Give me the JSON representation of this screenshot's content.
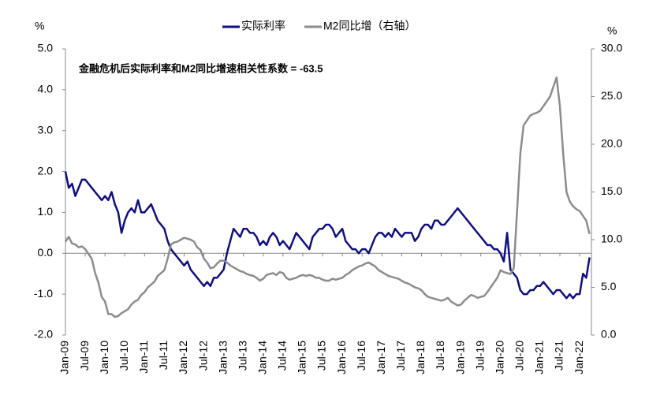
{
  "chart_data": {
    "type": "line",
    "annotation": "金融危机后实际利率和M2同比增速相关性系数 =  -63.5",
    "y_label": "%",
    "y2_label": "%",
    "legend": "top",
    "categories": [
      "Jan-09",
      null,
      null,
      null,
      null,
      null,
      "Jul-09",
      null,
      null,
      null,
      null,
      null,
      "Jan-10",
      null,
      null,
      null,
      null,
      null,
      "Jul-10",
      null,
      null,
      null,
      null,
      null,
      "Jan-11",
      null,
      null,
      null,
      null,
      null,
      "Jul-11",
      null,
      null,
      null,
      null,
      null,
      "Jan-12",
      null,
      null,
      null,
      null,
      null,
      "Jul-12",
      null,
      null,
      null,
      null,
      null,
      "Jan-13",
      null,
      null,
      null,
      null,
      null,
      "Jul-13",
      null,
      null,
      null,
      null,
      null,
      "Jan-14",
      null,
      null,
      null,
      null,
      null,
      "Jul-14",
      null,
      null,
      null,
      null,
      null,
      "Jan-15",
      null,
      null,
      null,
      null,
      null,
      "Jul-15",
      null,
      null,
      null,
      null,
      null,
      "Jan-16",
      null,
      null,
      null,
      null,
      null,
      "Jul-16",
      null,
      null,
      null,
      null,
      null,
      "Jan-17",
      null,
      null,
      null,
      null,
      null,
      "Jul-17",
      null,
      null,
      null,
      null,
      null,
      "Jan-18",
      null,
      null,
      null,
      null,
      null,
      "Jul-18",
      null,
      null,
      null,
      null,
      null,
      "Jan-19",
      null,
      null,
      null,
      null,
      null,
      "Jul-19",
      null,
      null,
      null,
      null,
      null,
      "Jan-20",
      null,
      null,
      null,
      null,
      null,
      "Jul-20",
      null,
      null,
      null,
      null,
      null,
      "Jan-21",
      null,
      null,
      null,
      null,
      null,
      "Jul-21",
      null,
      null,
      null,
      null,
      null,
      "Jan-22",
      null,
      null,
      null
    ],
    "series": [
      {
        "name": "实际利率",
        "color": "#0f0f80",
        "axis": "y",
        "values": [
          2.0,
          1.6,
          1.7,
          1.4,
          1.6,
          1.8,
          1.8,
          1.7,
          1.6,
          1.5,
          1.4,
          1.3,
          1.4,
          1.3,
          1.5,
          1.2,
          1.0,
          0.5,
          0.8,
          1.0,
          1.1,
          1.0,
          1.3,
          1.0,
          1.0,
          1.1,
          1.2,
          1.0,
          0.8,
          0.7,
          0.6,
          0.3,
          0.1,
          0.0,
          -0.1,
          -0.2,
          -0.3,
          -0.2,
          -0.4,
          -0.5,
          -0.6,
          -0.7,
          -0.8,
          -0.7,
          -0.8,
          -0.6,
          -0.6,
          -0.5,
          -0.4,
          0.0,
          0.3,
          0.6,
          0.5,
          0.4,
          0.6,
          0.6,
          0.5,
          0.5,
          0.4,
          0.2,
          0.3,
          0.2,
          0.4,
          0.5,
          0.4,
          0.2,
          0.3,
          0.2,
          0.1,
          0.3,
          0.5,
          0.4,
          0.3,
          0.2,
          0.1,
          0.4,
          0.5,
          0.6,
          0.6,
          0.7,
          0.7,
          0.6,
          0.4,
          0.5,
          0.6,
          0.3,
          0.2,
          0.1,
          0.1,
          0.0,
          0.1,
          0.1,
          0.0,
          0.2,
          0.4,
          0.5,
          0.5,
          0.4,
          0.5,
          0.4,
          0.6,
          0.5,
          0.4,
          0.5,
          0.5,
          0.5,
          0.3,
          0.4,
          0.6,
          0.7,
          0.7,
          0.6,
          0.8,
          0.8,
          0.7,
          0.7,
          0.8,
          0.9,
          1.0,
          1.1,
          1.0,
          0.9,
          0.8,
          0.7,
          0.6,
          0.5,
          0.4,
          0.3,
          0.2,
          0.2,
          0.1,
          0.1,
          0.0,
          -0.2,
          0.5,
          -0.4,
          -0.5,
          -0.6,
          -0.9,
          -1.0,
          -1.0,
          -0.9,
          -0.9,
          -0.8,
          -0.8,
          -0.7,
          -0.8,
          -0.9,
          -1.0,
          -0.9,
          -0.9,
          -1.0,
          -1.1,
          -1.0,
          -1.1,
          -1.0,
          -1.0,
          -0.5,
          -0.6,
          -0.1
        ]
      },
      {
        "name": "M2同比增（右轴）",
        "color": "#8c8c8c",
        "axis": "y2",
        "values": [
          9.8,
          10.3,
          9.6,
          9.5,
          9.2,
          9.3,
          9.0,
          8.5,
          8.0,
          6.5,
          5.5,
          4.0,
          3.5,
          2.2,
          2.2,
          1.9,
          2.0,
          2.3,
          2.5,
          2.7,
          3.2,
          3.5,
          3.7,
          4.2,
          4.5,
          5.0,
          5.3,
          5.6,
          6.2,
          6.5,
          6.8,
          8.0,
          9.5,
          9.7,
          9.8,
          10.0,
          10.2,
          10.1,
          10.0,
          9.8,
          9.2,
          8.9,
          8.0,
          7.6,
          7.0,
          7.1,
          7.5,
          7.8,
          7.8,
          7.6,
          7.3,
          7.1,
          6.9,
          6.7,
          6.6,
          6.4,
          6.3,
          6.2,
          6.0,
          5.7,
          5.9,
          6.3,
          6.4,
          6.5,
          6.3,
          6.6,
          6.5,
          6.0,
          5.8,
          5.9,
          6.0,
          6.2,
          6.3,
          6.2,
          6.3,
          6.2,
          6.0,
          6.0,
          5.8,
          5.7,
          5.7,
          5.9,
          5.8,
          5.9,
          6.0,
          6.3,
          6.5,
          6.8,
          7.0,
          7.2,
          7.3,
          7.5,
          7.6,
          7.4,
          7.2,
          6.8,
          6.6,
          6.4,
          6.2,
          6.1,
          6.0,
          5.9,
          5.7,
          5.5,
          5.4,
          5.2,
          5.0,
          4.9,
          4.7,
          4.3,
          4.0,
          3.9,
          3.8,
          3.7,
          3.6,
          3.7,
          3.9,
          3.5,
          3.3,
          3.1,
          3.2,
          3.6,
          3.9,
          4.2,
          4.1,
          3.9,
          4.0,
          4.1,
          4.5,
          5.0,
          5.5,
          6.0,
          6.8,
          6.6,
          6.5,
          6.4,
          7.0,
          13.0,
          19.0,
          22.0,
          22.5,
          23.0,
          23.2,
          23.3,
          23.5,
          24.0,
          24.5,
          25.0,
          26.0,
          27.0,
          24.0,
          19.0,
          15.0,
          14.0,
          13.5,
          13.2,
          13.0,
          12.5,
          12.0,
          10.6
        ]
      }
    ],
    "ylim": [
      -2,
      5
    ],
    "yticks": [
      {
        "value": -2,
        "label": "-2.0"
      },
      {
        "value": -1,
        "label": "-1.0"
      },
      {
        "value": 0,
        "label": "0.0"
      },
      {
        "value": 1,
        "label": "1.0"
      },
      {
        "value": 2,
        "label": "2.0"
      },
      {
        "value": 3,
        "label": "3.0"
      },
      {
        "value": 4,
        "label": "4.0"
      },
      {
        "value": 5,
        "label": "5.0"
      }
    ],
    "y2lim": [
      0,
      30
    ],
    "y2ticks": [
      {
        "value": 0,
        "label": "0.0"
      },
      {
        "value": 5,
        "label": "5.0"
      },
      {
        "value": 10,
        "label": "10.0"
      },
      {
        "value": 15,
        "label": "15.0"
      },
      {
        "value": 20,
        "label": "20.0"
      },
      {
        "value": 25,
        "label": "25.0"
      },
      {
        "value": 30,
        "label": "30.0"
      }
    ]
  }
}
